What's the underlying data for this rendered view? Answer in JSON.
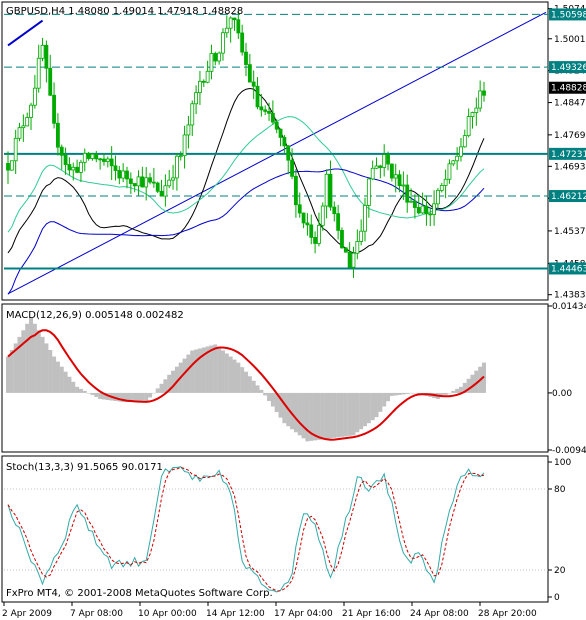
{
  "window": {
    "symbol_info": "GBPUSD,H4  1.48080 1.49014 1.47918 1.48828",
    "copyright": "FxPro MT4, © 2001-2008 MetaQuotes Software Corp."
  },
  "colors": {
    "candle": "#00aa00",
    "level_line": "#008080",
    "trend_line": "#0000cc",
    "ma_fast": "#000000",
    "ma_mid": "#33cc99",
    "ma_slow": "#0000cc",
    "macd_hist": "#c0c0c0",
    "macd_signal": "#dd0000",
    "stoch_main": "#33aaaa",
    "stoch_signal": "#cc0000"
  },
  "chart_data": [
    {
      "type": "candlestick",
      "title": "GBPUSD,H4",
      "price_ticks": [
        "1.50740",
        "1.50010",
        "1.49240",
        "1.48470",
        "1.47690",
        "1.46930",
        "1.46160",
        "1.45370",
        "1.44580",
        "1.43830"
      ],
      "ylim": [
        1.4375,
        1.5085
      ],
      "level_labels": [
        {
          "price": 1.50598,
          "label": "1.50598"
        },
        {
          "price": 1.49326,
          "label": "1.49326"
        },
        {
          "price": 1.47231,
          "label": "1.47231"
        },
        {
          "price": 1.46212,
          "label": "1.46212"
        },
        {
          "price": 1.44463,
          "label": "1.44463"
        }
      ],
      "current_price": {
        "price": 1.48828,
        "label": "1.48828"
      },
      "x_labels": [
        "2 Apr 2009",
        "7 Apr 08:00",
        "10 Apr 00:00",
        "14 Apr 12:00",
        "17 Apr 04:00",
        "21 Apr 16:00",
        "24 Apr 08:00",
        "28 Apr 20:00"
      ]
    },
    {
      "type": "histogram",
      "title": "MACD(12,26,9) 0.005148 0.002482",
      "ticks": [
        "0.014349",
        "0.00",
        "-0.009426"
      ],
      "ylim": [
        -0.009426,
        0.014349
      ]
    },
    {
      "type": "line",
      "title": "Stoch(13,3,3) 91.5065 90.0171",
      "ticks": [
        "100",
        "80",
        "20",
        "0"
      ],
      "ylim": [
        0,
        100
      ]
    }
  ]
}
